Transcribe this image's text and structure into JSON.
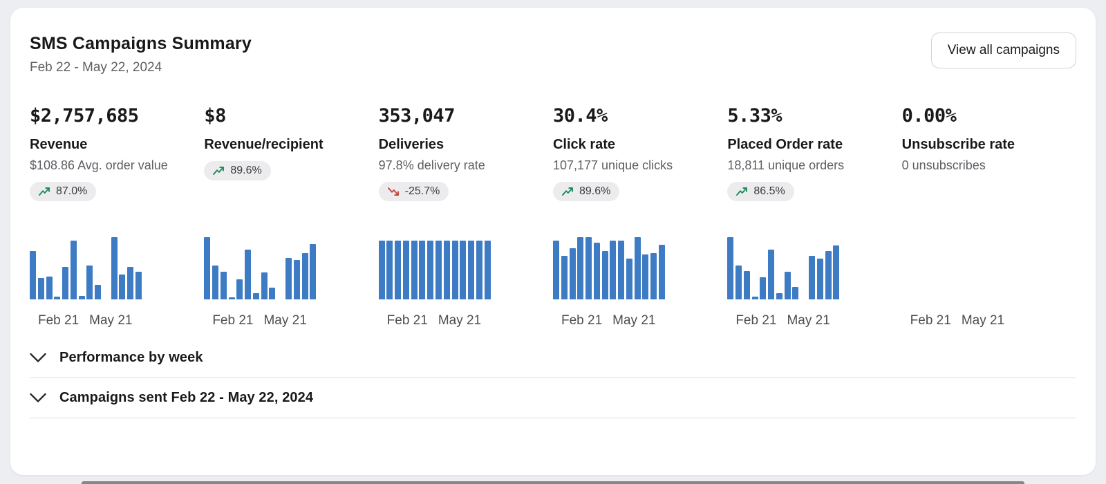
{
  "header": {
    "title": "SMS Campaigns Summary",
    "date_range": "Feb 22 - May 22, 2024",
    "view_all_label": "View all campaigns"
  },
  "colors": {
    "bar": "#3d7cc4",
    "positive": "#1d8a58",
    "negative": "#c2473a",
    "badge_bg": "#ececee"
  },
  "axis": {
    "start": "Feb 21",
    "end": "May 21"
  },
  "metrics": [
    {
      "value": "$2,757,685",
      "label": "Revenue",
      "sub": "$108.86 Avg. order value",
      "change": "87.0%",
      "trend": "up"
    },
    {
      "value": "$8",
      "label": "Revenue/recipient",
      "sub": "",
      "change": "89.6%",
      "trend": "up"
    },
    {
      "value": "353,047",
      "label": "Deliveries",
      "sub": "97.8% delivery rate",
      "change": "-25.7%",
      "trend": "down"
    },
    {
      "value": "30.4%",
      "label": "Click rate",
      "sub": "107,177 unique clicks",
      "change": "89.6%",
      "trend": "up"
    },
    {
      "value": "5.33%",
      "label": "Placed Order rate",
      "sub": "18,811 unique orders",
      "change": "86.5%",
      "trend": "up"
    },
    {
      "value": "0.00%",
      "label": "Unsubscribe rate",
      "sub": "0 unsubscribes",
      "change": null,
      "trend": null
    }
  ],
  "chart_data": [
    {
      "type": "bar",
      "metric": "Revenue",
      "x_start": "Feb 21",
      "x_end": "May 21",
      "values_normalized": [
        0.78,
        0.35,
        0.37,
        0.05,
        0.52,
        0.95,
        0.06,
        0.55,
        0.23,
        0,
        1.0,
        0.4,
        0.52,
        0.45
      ]
    },
    {
      "type": "bar",
      "metric": "Revenue/recipient",
      "x_start": "Feb 21",
      "x_end": "May 21",
      "values_normalized": [
        1.0,
        0.55,
        0.45,
        0.03,
        0.32,
        0.8,
        0.1,
        0.43,
        0.19,
        0,
        0.67,
        0.63,
        0.74,
        0.89
      ]
    },
    {
      "type": "bar",
      "metric": "Deliveries",
      "x_start": "Feb 21",
      "x_end": "May 21",
      "values_normalized": [
        0.95,
        0.95,
        0.95,
        0.95,
        0.95,
        0.95,
        0.95,
        0.95,
        0.95,
        0.95,
        0.95,
        0.95,
        0.95,
        0.95
      ]
    },
    {
      "type": "bar",
      "metric": "Click rate",
      "x_start": "Feb 21",
      "x_end": "May 21",
      "values_normalized": [
        0.95,
        0.7,
        0.82,
        1.0,
        1.0,
        0.91,
        0.78,
        0.95,
        0.95,
        0.66,
        1.0,
        0.72,
        0.75,
        0.88
      ]
    },
    {
      "type": "bar",
      "metric": "Placed Order rate",
      "x_start": "Feb 21",
      "x_end": "May 21",
      "values_normalized": [
        1.0,
        0.55,
        0.46,
        0.04,
        0.36,
        0.8,
        0.1,
        0.44,
        0.2,
        0,
        0.7,
        0.66,
        0.78,
        0.87
      ]
    },
    {
      "type": "bar",
      "metric": "Unsubscribe rate",
      "x_start": "Feb 21",
      "x_end": "May 21",
      "values_normalized": [
        0,
        0,
        0,
        0,
        0,
        0,
        0,
        0,
        0,
        0,
        0,
        0,
        0,
        0
      ]
    }
  ],
  "sections": [
    {
      "label": "Performance by week"
    },
    {
      "label": "Campaigns sent Feb 22 - May 22, 2024"
    }
  ]
}
